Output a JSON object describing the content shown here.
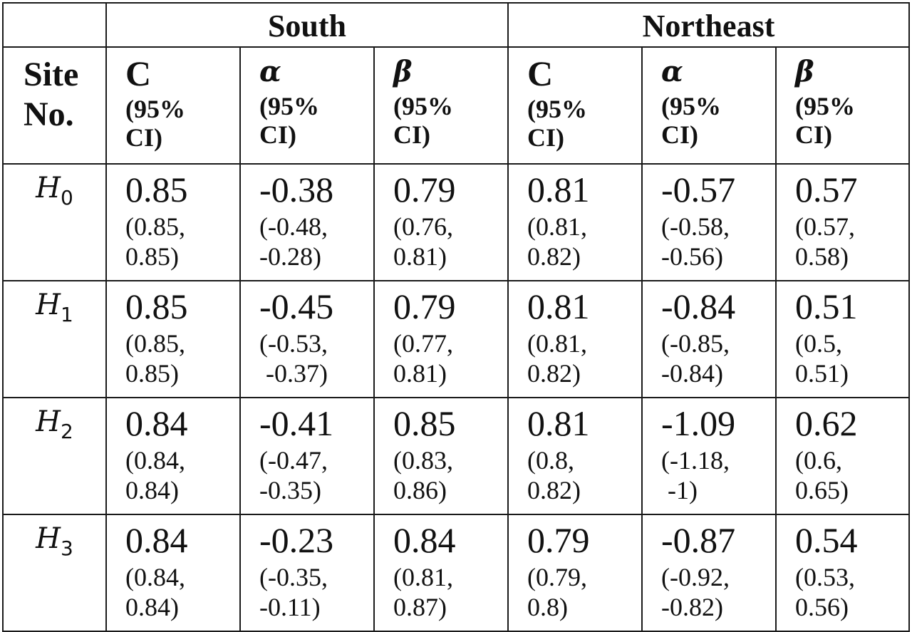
{
  "groups": [
    "South",
    "Northeast"
  ],
  "site_header": "Site No.",
  "parameters": [
    {
      "symbol": "C",
      "ci_label": "(95%\nCI)"
    },
    {
      "symbol": "α",
      "ci_label": "(95%\nCI)"
    },
    {
      "symbol": "β",
      "ci_label": "(95%\nCI)"
    },
    {
      "symbol": "C",
      "ci_label": "(95%\nCI)"
    },
    {
      "symbol": "α",
      "ci_label": "(95%\nCI)"
    },
    {
      "symbol": "β",
      "ci_label": "(95%\nCI)"
    }
  ],
  "rows": [
    {
      "site": "H",
      "sub": "0",
      "cells": [
        {
          "est": "0.85",
          "ci": "(0.85,\n0.85)"
        },
        {
          "est": "-0.38",
          "ci": "(-0.48,\n-0.28)"
        },
        {
          "est": "0.79",
          "ci": "(0.76,\n0.81)"
        },
        {
          "est": "0.81",
          "ci": "(0.81,\n0.82)"
        },
        {
          "est": "-0.57",
          "ci": "(-0.58,\n-0.56)"
        },
        {
          "est": "0.57",
          "ci": "(0.57,\n0.58)"
        }
      ]
    },
    {
      "site": "H",
      "sub": "1",
      "cells": [
        {
          "est": "0.85",
          "ci": "(0.85,\n0.85)"
        },
        {
          "est": "-0.45",
          "ci": "(-0.53,\n -0.37)"
        },
        {
          "est": "0.79",
          "ci": "(0.77,\n0.81)"
        },
        {
          "est": "0.81",
          "ci": "(0.81,\n0.82)"
        },
        {
          "est": "-0.84",
          "ci": "(-0.85,\n-0.84)"
        },
        {
          "est": "0.51",
          "ci": "(0.5,\n0.51)"
        }
      ]
    },
    {
      "site": "H",
      "sub": "2",
      "cells": [
        {
          "est": "0.84",
          "ci": "(0.84,\n0.84)"
        },
        {
          "est": "-0.41",
          "ci": "(-0.47,\n-0.35)"
        },
        {
          "est": "0.85",
          "ci": "(0.83,\n0.86)"
        },
        {
          "est": "0.81",
          "ci": "(0.8,\n0.82)"
        },
        {
          "est": "-1.09",
          "ci": "(-1.18,\n -1)"
        },
        {
          "est": "0.62",
          "ci": "(0.6,\n0.65)"
        }
      ]
    },
    {
      "site": "H",
      "sub": "3",
      "cells": [
        {
          "est": "0.84",
          "ci": "(0.84,\n0.84)"
        },
        {
          "est": "-0.23",
          "ci": "(-0.35,\n-0.11)"
        },
        {
          "est": "0.84",
          "ci": "(0.81,\n0.87)"
        },
        {
          "est": "0.79",
          "ci": "(0.79,\n0.8)"
        },
        {
          "est": "-0.87",
          "ci": "(-0.92,\n-0.82)"
        },
        {
          "est": "0.54",
          "ci": "(0.53,\n0.56)"
        }
      ]
    }
  ]
}
